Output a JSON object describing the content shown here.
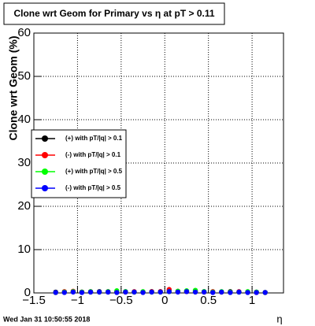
{
  "chart_data": {
    "type": "scatter",
    "title": "Clone wrt Geom for Primary vs   η at pT > 0.11",
    "ylabel": "Clone wrt Geom (%)",
    "xlabel": "η",
    "footer": "Wed Jan 31 10:50:55 2018",
    "x": [
      -1.25,
      -1.15,
      -1.05,
      -0.95,
      -0.85,
      -0.75,
      -0.65,
      -0.55,
      -0.45,
      -0.35,
      -0.25,
      -0.15,
      -0.05,
      0.05,
      0.15,
      0.25,
      0.35,
      0.45,
      0.55,
      0.65,
      0.75,
      0.85,
      0.95,
      1.05,
      1.15
    ],
    "series": [
      {
        "name": "(+) with pT/|q| > 0.1",
        "color": "#000000",
        "values": [
          0.2,
          0.2,
          0.3,
          0.2,
          0.2,
          0.3,
          0.2,
          0.2,
          0.3,
          0.2,
          0.2,
          0.3,
          0.3,
          0.4,
          0.3,
          0.4,
          0.3,
          0.3,
          0.2,
          0.2,
          0.3,
          0.2,
          0.2,
          0.2,
          0.1
        ]
      },
      {
        "name": "(-) with pT/|q| > 0.1",
        "color": "#ff0000",
        "values": [
          0.1,
          0.3,
          0.4,
          0.2,
          0.3,
          0.2,
          0.3,
          0.2,
          0.2,
          0.3,
          0.2,
          0.3,
          0.3,
          0.8,
          0.4,
          0.3,
          0.5,
          0.2,
          0.3,
          0.2,
          0.2,
          0.3,
          0.2,
          0.1,
          0.1
        ]
      },
      {
        "name": "(+) with pT/|q| > 0.5",
        "color": "#00ff00",
        "values": [
          0.1,
          0.2,
          0.3,
          0.2,
          0.3,
          0.2,
          0.3,
          0.5,
          0.3,
          0.2,
          0.3,
          0.2,
          0.2,
          0.3,
          0.4,
          0.5,
          0.6,
          0.3,
          0.2,
          0.3,
          0.2,
          0.2,
          0.3,
          0.2,
          0.1
        ]
      },
      {
        "name": "(-) with pT/|q| > 0.5",
        "color": "#0000ff",
        "values": [
          0.1,
          0.1,
          0.2,
          0.1,
          0.2,
          0.2,
          0.2,
          0.1,
          0.2,
          0.2,
          0.1,
          0.2,
          0.2,
          0.3,
          0.2,
          0.3,
          0.2,
          0.2,
          0.1,
          0.2,
          0.1,
          0.2,
          0.1,
          0.1,
          0.1
        ]
      }
    ],
    "xlim": [
      -1.5,
      1.36
    ],
    "ylim": [
      0,
      60
    ],
    "xticks": [
      {
        "value": -1.5,
        "label": "−1.5"
      },
      {
        "value": -1,
        "label": "−1"
      },
      {
        "value": -0.5,
        "label": "−0.5"
      },
      0,
      0.5,
      1
    ],
    "yticks": [
      0,
      10,
      20,
      30,
      40,
      50,
      60
    ],
    "grid": true
  }
}
